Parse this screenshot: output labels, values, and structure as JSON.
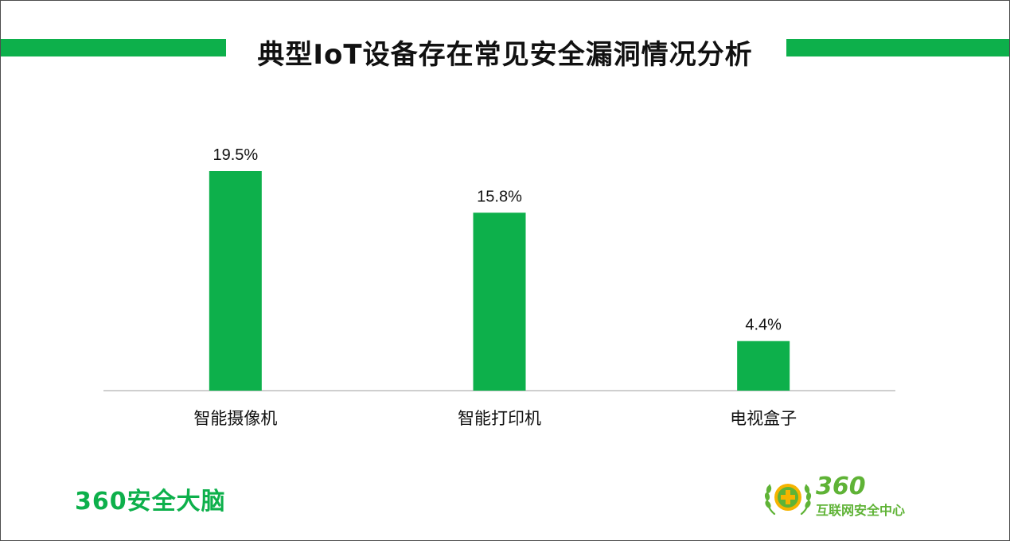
{
  "title": "典型IoT设备存在常见安全漏洞情况分析",
  "colors": {
    "accent": "#0db04b",
    "text": "#111111",
    "axis": "#bfbfbf"
  },
  "chart_data": {
    "type": "bar",
    "categories": [
      "智能摄像机",
      "智能打印机",
      "电视盒子"
    ],
    "values": [
      19.5,
      15.8,
      4.4
    ],
    "value_labels": [
      "19.5%",
      "15.8%",
      "4.4%"
    ],
    "unit": "%",
    "ylim": [
      0,
      19.5
    ],
    "grid": false,
    "legend": "none"
  },
  "footer": {
    "left_brand": "360安全大脑",
    "right_brand_number": "360",
    "right_brand_name": "互联网安全中心",
    "logo_icon": "360-plus-laurel-logo"
  }
}
